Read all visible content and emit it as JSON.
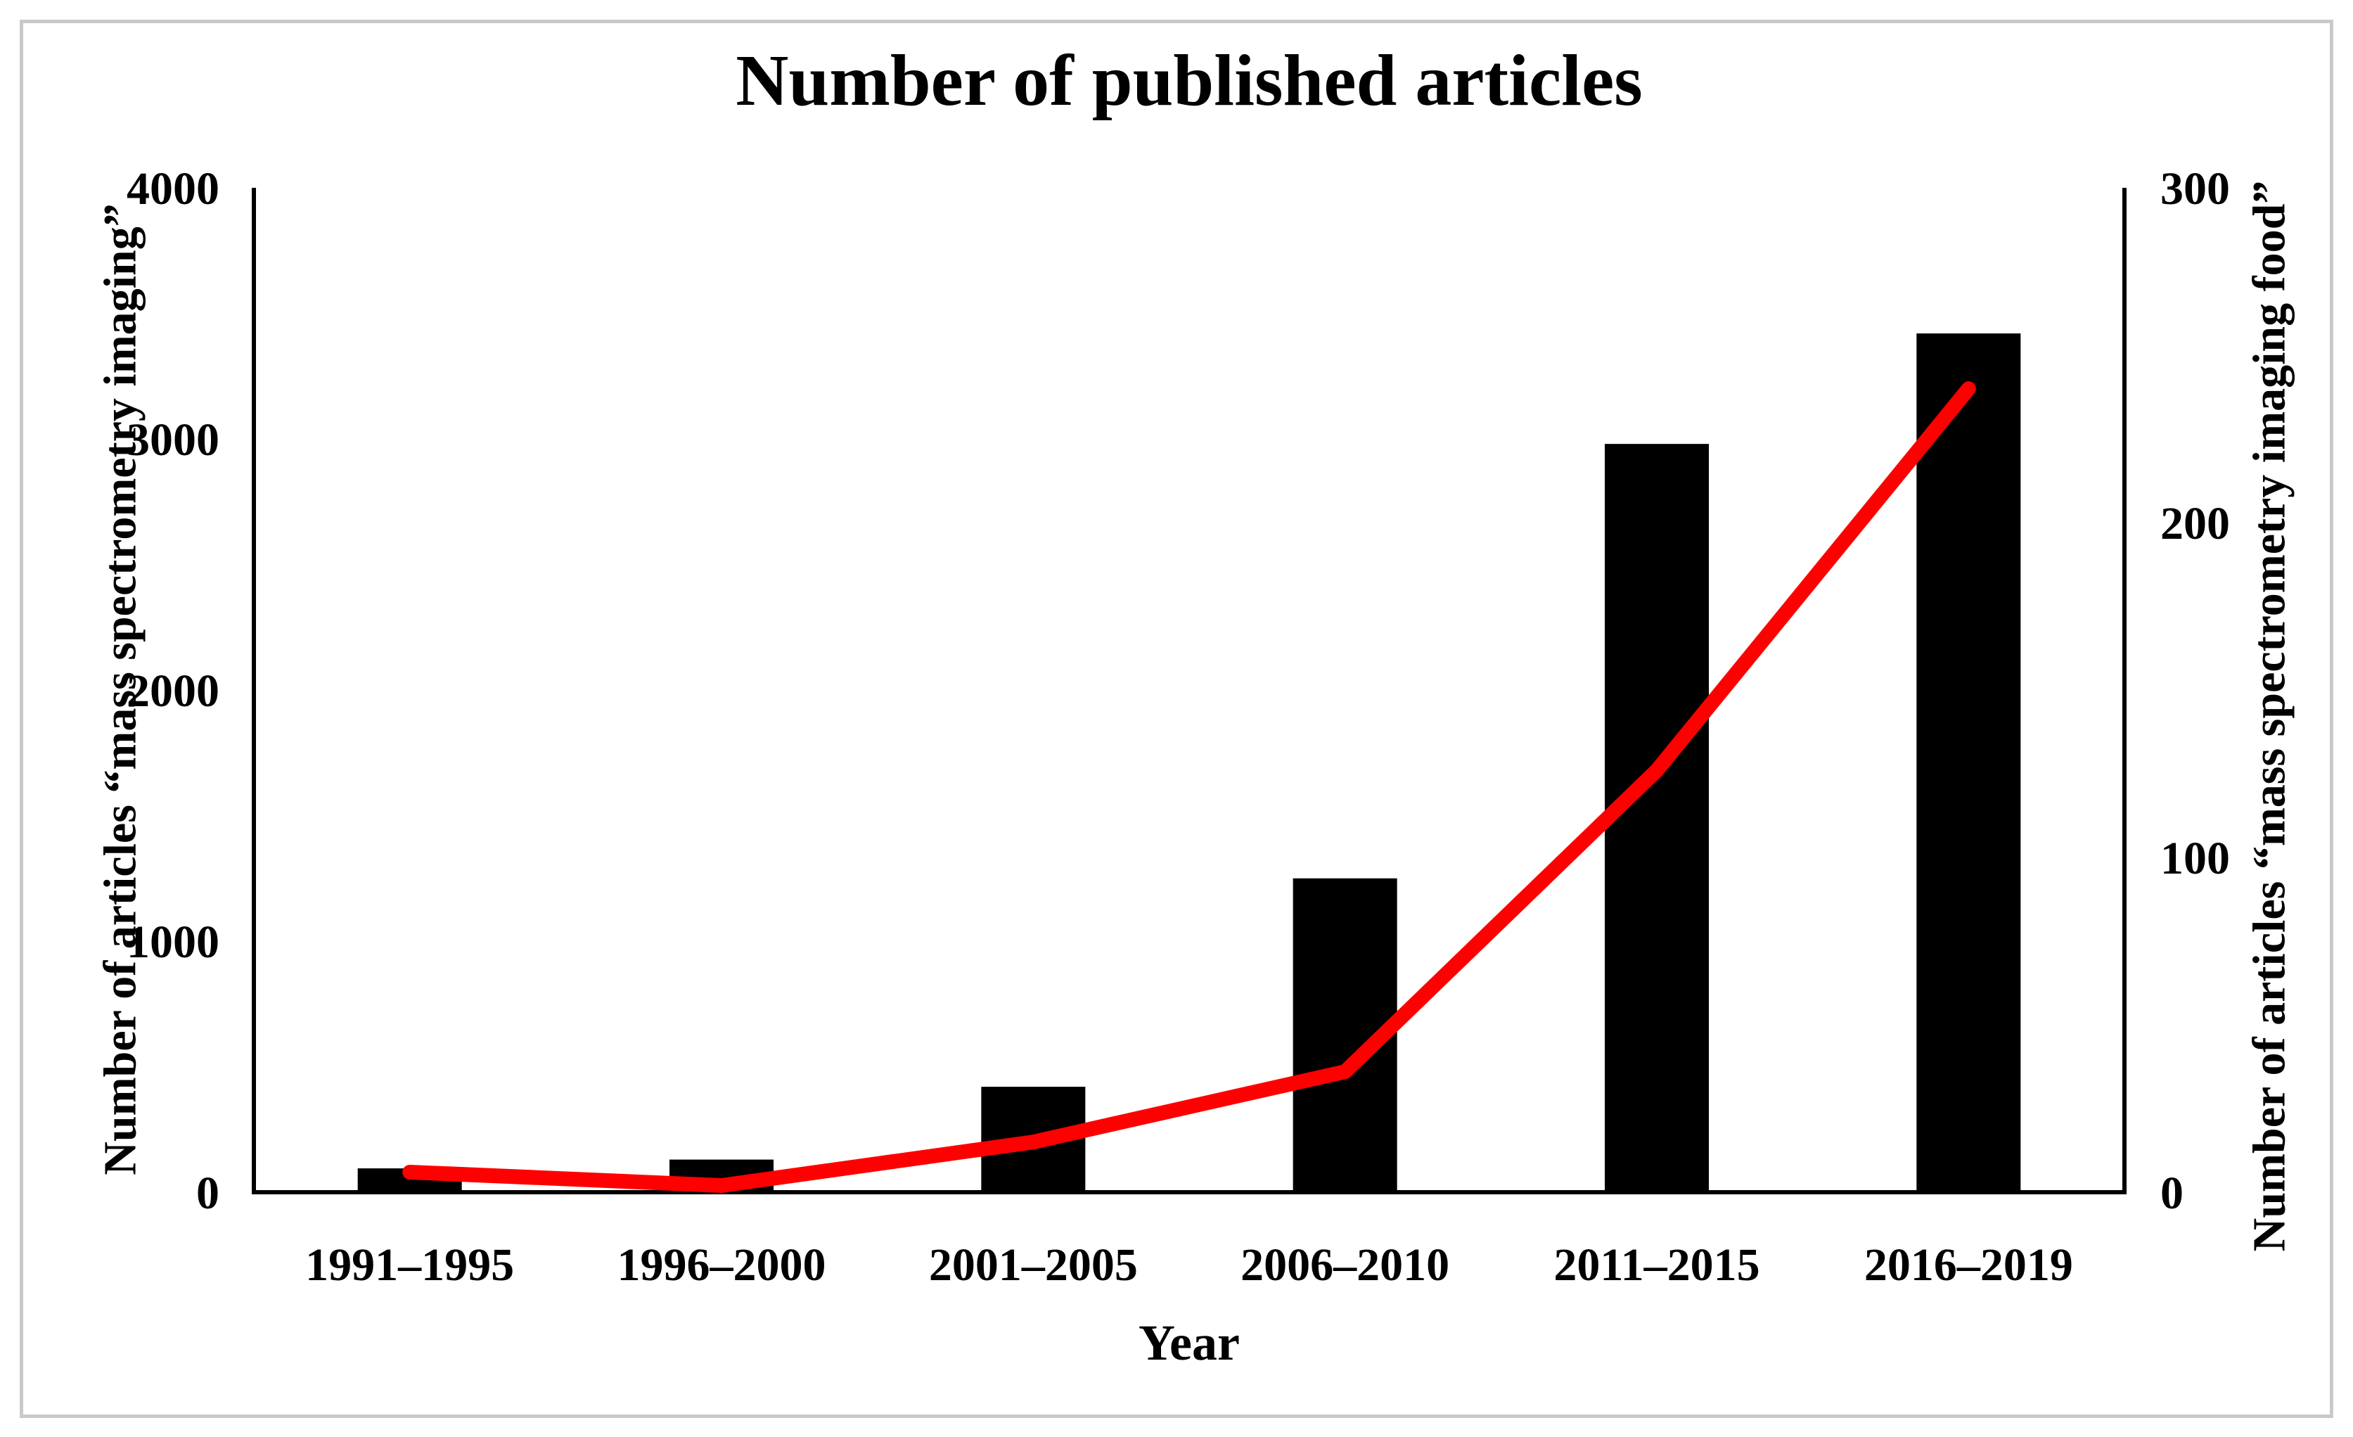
{
  "chart_data": {
    "type": "combo",
    "title": "Number of published articles",
    "xlabel": "Year",
    "ylabel_left": "Number of articles “mass spectrometry imaging”",
    "ylabel_right": "Number of articles “mass spectrometry imaging food”",
    "categories": [
      "1991–1995",
      "1996–2000",
      "2001–2005",
      "2006–2010",
      "2011–2015",
      "2016–2019"
    ],
    "series": [
      {
        "name": "Number of articles “mass spectrometry imaging”",
        "type": "bar",
        "axis": "left",
        "color": "#000000",
        "values": [
          95,
          130,
          420,
          1250,
          2980,
          3420
        ]
      },
      {
        "name": "Number of articles “mass spectrometry imaging food”",
        "type": "line",
        "axis": "right",
        "color": "#ff0000",
        "values": [
          6,
          2,
          15,
          36,
          126,
          240
        ]
      }
    ],
    "ylim_left": [
      0,
      4000
    ],
    "yticks_left": [
      0,
      1000,
      2000,
      3000,
      4000
    ],
    "ylim_right": [
      0,
      300
    ],
    "yticks_right": [
      0,
      100,
      200,
      300
    ],
    "grid": false,
    "legend": "none",
    "frame_color": "#c9c9c9",
    "axis_color": "#000000"
  }
}
